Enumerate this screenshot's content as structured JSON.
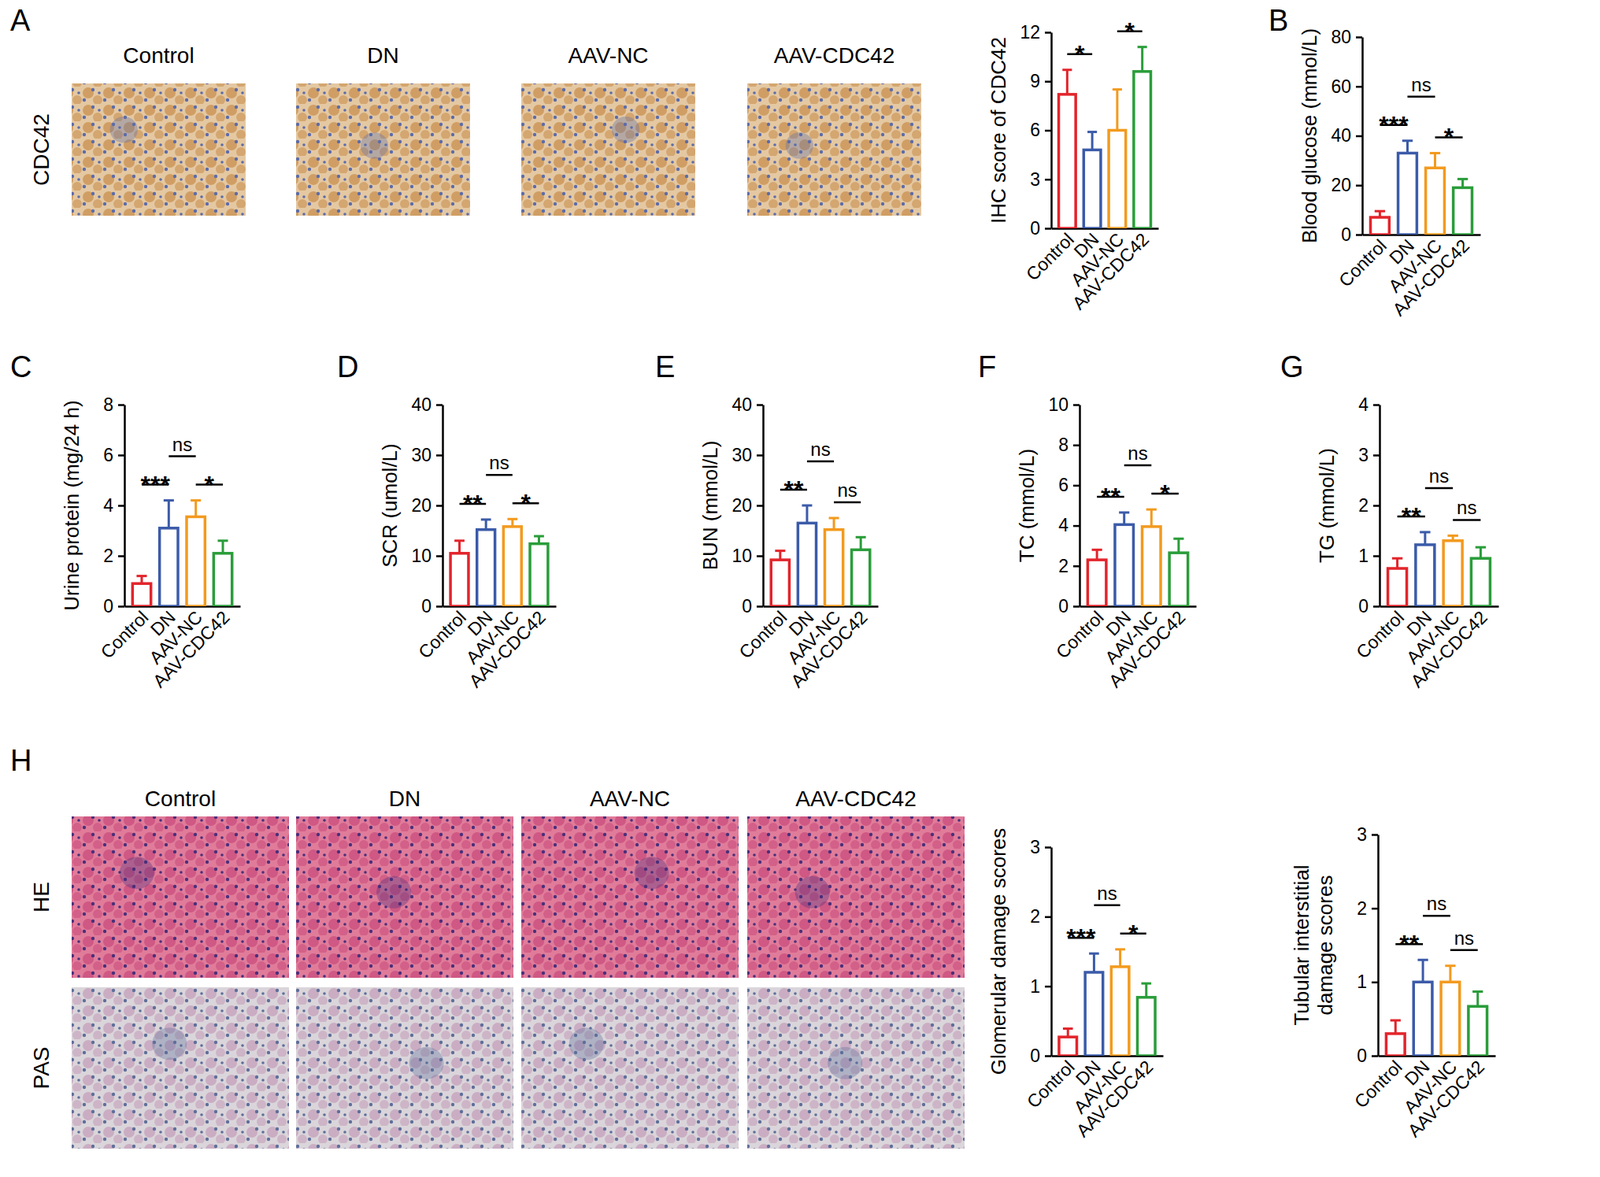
{
  "figure": {
    "panel_labels": [
      "A",
      "B",
      "C",
      "D",
      "E",
      "F",
      "G",
      "H"
    ],
    "image_grids": [
      {
        "columns": [
          "Control",
          "DN",
          "AAV-NC",
          "AAV-CDC42"
        ],
        "rows": [
          "CDC42"
        ]
      },
      {
        "columns": [
          "Control",
          "DN",
          "AAV-NC",
          "AAV-CDC42"
        ],
        "rows": [
          "HE",
          "PAS"
        ]
      }
    ]
  },
  "chart_data": [
    {
      "type": "bar",
      "categories": [
        "Control",
        "DN",
        "AAV-NC",
        "AAV-CDC42"
      ],
      "colors": [
        "#e3242b",
        "#3b5ba9",
        "#f39a1e",
        "#2a9d3a"
      ],
      "y_label": "IHC score of CDC42",
      "values": [
        8.2,
        4.8,
        6.0,
        9.6
      ],
      "errors": [
        1.5,
        1.1,
        2.5,
        1.5
      ],
      "ylim": [
        0,
        12
      ],
      "yticks": [
        0,
        3,
        6,
        9,
        12
      ],
      "annotations": [
        {
          "between": [
            "Control",
            "DN"
          ],
          "label": "*"
        },
        {
          "between": [
            "AAV-NC",
            "AAV-CDC42"
          ],
          "label": "*"
        }
      ]
    },
    {
      "type": "bar",
      "categories": [
        "Control",
        "DN",
        "AAV-NC",
        "AAV-CDC42"
      ],
      "colors": [
        "#e3242b",
        "#3b5ba9",
        "#f39a1e",
        "#2a9d3a"
      ],
      "y_label": "Blood glucose (mmol/L)",
      "values": [
        7,
        33,
        27,
        19
      ],
      "errors": [
        2.5,
        5,
        6,
        3.5
      ],
      "ylim": [
        0,
        80
      ],
      "yticks": [
        0,
        20,
        40,
        60,
        80
      ],
      "annotations": [
        {
          "between": [
            "Control",
            "DN"
          ],
          "label": "***"
        },
        {
          "between": [
            "DN",
            "AAV-NC"
          ],
          "label": "ns"
        },
        {
          "between": [
            "AAV-NC",
            "AAV-CDC42"
          ],
          "label": "*"
        }
      ]
    },
    {
      "type": "bar",
      "categories": [
        "Control",
        "DN",
        "AAV-NC",
        "AAV-CDC42"
      ],
      "colors": [
        "#e3242b",
        "#3b5ba9",
        "#f39a1e",
        "#2a9d3a"
      ],
      "y_label": "Urine protein (mg/24 h)",
      "values": [
        0.9,
        3.1,
        3.55,
        2.1
      ],
      "errors": [
        0.3,
        1.1,
        0.65,
        0.5
      ],
      "ylim": [
        0,
        8
      ],
      "yticks": [
        0,
        2,
        4,
        6,
        8
      ],
      "annotations": [
        {
          "between": [
            "Control",
            "DN"
          ],
          "label": "***"
        },
        {
          "between": [
            "DN",
            "AAV-NC"
          ],
          "label": "ns"
        },
        {
          "between": [
            "AAV-NC",
            "AAV-CDC42"
          ],
          "label": "*"
        }
      ]
    },
    {
      "type": "bar",
      "categories": [
        "Control",
        "DN",
        "AAV-NC",
        "AAV-CDC42"
      ],
      "colors": [
        "#e3242b",
        "#3b5ba9",
        "#f39a1e",
        "#2a9d3a"
      ],
      "y_label": "SCR (umol/L)",
      "values": [
        10.5,
        15.2,
        15.8,
        12.4
      ],
      "errors": [
        2.5,
        2.0,
        1.5,
        1.5
      ],
      "ylim": [
        0,
        40
      ],
      "yticks": [
        0,
        10,
        20,
        30,
        40
      ],
      "annotations": [
        {
          "between": [
            "Control",
            "DN"
          ],
          "label": "**"
        },
        {
          "between": [
            "DN",
            "AAV-NC"
          ],
          "label": "ns"
        },
        {
          "between": [
            "AAV-NC",
            "AAV-CDC42"
          ],
          "label": "*"
        }
      ]
    },
    {
      "type": "bar",
      "categories": [
        "Control",
        "DN",
        "AAV-NC",
        "AAV-CDC42"
      ],
      "colors": [
        "#e3242b",
        "#3b5ba9",
        "#f39a1e",
        "#2a9d3a"
      ],
      "y_label": "BUN (mmol/L)",
      "values": [
        9.2,
        16.5,
        15.2,
        11.2
      ],
      "errors": [
        1.8,
        3.5,
        2.3,
        2.5
      ],
      "ylim": [
        0,
        40
      ],
      "yticks": [
        0,
        10,
        20,
        30,
        40
      ],
      "annotations": [
        {
          "between": [
            "Control",
            "DN"
          ],
          "label": "**"
        },
        {
          "between": [
            "DN",
            "AAV-NC"
          ],
          "label": "ns"
        },
        {
          "between": [
            "AAV-NC",
            "AAV-CDC42"
          ],
          "label": "ns"
        }
      ]
    },
    {
      "type": "bar",
      "categories": [
        "Control",
        "DN",
        "AAV-NC",
        "AAV-CDC42"
      ],
      "colors": [
        "#e3242b",
        "#3b5ba9",
        "#f39a1e",
        "#2a9d3a"
      ],
      "y_label": "TC (mmol/L)",
      "values": [
        2.3,
        4.05,
        3.95,
        2.65
      ],
      "errors": [
        0.5,
        0.6,
        0.85,
        0.7
      ],
      "ylim": [
        0,
        10
      ],
      "yticks": [
        0,
        2,
        4,
        6,
        8,
        10
      ],
      "annotations": [
        {
          "between": [
            "Control",
            "DN"
          ],
          "label": "**"
        },
        {
          "between": [
            "DN",
            "AAV-NC"
          ],
          "label": "ns"
        },
        {
          "between": [
            "AAV-NC",
            "AAV-CDC42"
          ],
          "label": "*"
        }
      ]
    },
    {
      "type": "bar",
      "categories": [
        "Control",
        "DN",
        "AAV-NC",
        "AAV-CDC42"
      ],
      "colors": [
        "#e3242b",
        "#3b5ba9",
        "#f39a1e",
        "#2a9d3a"
      ],
      "y_label": "TG (mmol/L)",
      "values": [
        0.75,
        1.22,
        1.3,
        0.95
      ],
      "errors": [
        0.2,
        0.25,
        0.1,
        0.22
      ],
      "ylim": [
        0,
        4
      ],
      "yticks": [
        0,
        1,
        2,
        3,
        4
      ],
      "annotations": [
        {
          "between": [
            "Control",
            "DN"
          ],
          "label": "**"
        },
        {
          "between": [
            "DN",
            "AAV-NC"
          ],
          "label": "ns"
        },
        {
          "between": [
            "AAV-NC",
            "AAV-CDC42"
          ],
          "label": "ns"
        }
      ]
    },
    {
      "type": "bar",
      "categories": [
        "Control",
        "DN",
        "AAV-NC",
        "AAV-CDC42"
      ],
      "colors": [
        "#e3242b",
        "#3b5ba9",
        "#f39a1e",
        "#2a9d3a"
      ],
      "y_label": "Glomerular damage scores",
      "values": [
        0.27,
        1.2,
        1.28,
        0.84
      ],
      "errors": [
        0.12,
        0.27,
        0.25,
        0.2
      ],
      "ylim": [
        0,
        3
      ],
      "yticks": [
        0,
        1,
        2,
        3
      ],
      "annotations": [
        {
          "between": [
            "Control",
            "DN"
          ],
          "label": "***"
        },
        {
          "between": [
            "DN",
            "AAV-NC"
          ],
          "label": "ns"
        },
        {
          "between": [
            "AAV-NC",
            "AAV-CDC42"
          ],
          "label": "*"
        }
      ]
    },
    {
      "type": "bar",
      "categories": [
        "Control",
        "DN",
        "AAV-NC",
        "AAV-CDC42"
      ],
      "colors": [
        "#e3242b",
        "#3b5ba9",
        "#f39a1e",
        "#2a9d3a"
      ],
      "y_label": [
        "Tubular interstitial",
        "damage scores"
      ],
      "values": [
        0.3,
        1.0,
        1.0,
        0.67
      ],
      "errors": [
        0.18,
        0.3,
        0.22,
        0.2
      ],
      "ylim": [
        0,
        3
      ],
      "yticks": [
        0,
        1,
        2,
        3
      ],
      "annotations": [
        {
          "between": [
            "Control",
            "DN"
          ],
          "label": "**"
        },
        {
          "between": [
            "DN",
            "AAV-NC"
          ],
          "label": "ns"
        },
        {
          "between": [
            "AAV-NC",
            "AAV-CDC42"
          ],
          "label": "ns"
        }
      ]
    }
  ]
}
